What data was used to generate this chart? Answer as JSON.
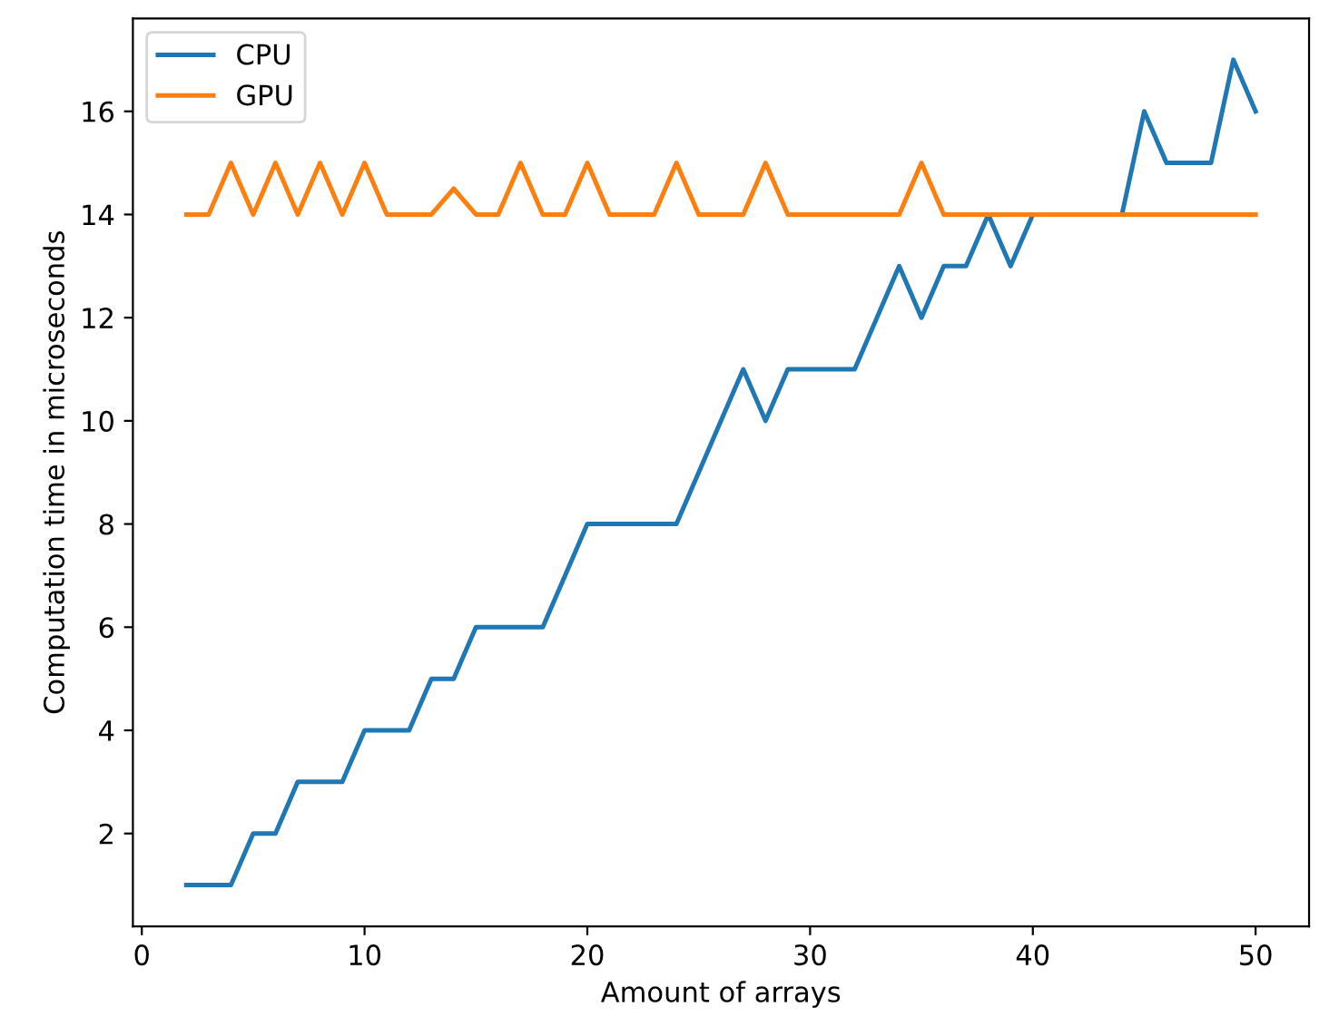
{
  "chart_data": {
    "type": "line",
    "xlabel": "Amount of arrays",
    "ylabel": "Computation time in microseconds",
    "x": [
      2,
      3,
      4,
      5,
      6,
      7,
      8,
      9,
      10,
      11,
      12,
      13,
      14,
      15,
      16,
      17,
      18,
      19,
      20,
      21,
      22,
      23,
      24,
      25,
      26,
      27,
      28,
      29,
      30,
      31,
      32,
      33,
      34,
      35,
      36,
      37,
      38,
      39,
      40,
      41,
      42,
      43,
      44,
      45,
      46,
      47,
      48,
      49,
      50
    ],
    "series": [
      {
        "name": "CPU",
        "color": "#1f77b4",
        "values": [
          1,
          1,
          1,
          2,
          2,
          3,
          3,
          3,
          4,
          4,
          4,
          5,
          5,
          6,
          6,
          6,
          6,
          7,
          8,
          8,
          8,
          8,
          8,
          9,
          10,
          11,
          10,
          11,
          11,
          11,
          11,
          12,
          13,
          12,
          13,
          13,
          14,
          13,
          14,
          14,
          14,
          14,
          14,
          16,
          15,
          15,
          15,
          17,
          16
        ]
      },
      {
        "name": "GPU",
        "color": "#ff7f0e",
        "values": [
          14,
          14,
          15,
          14,
          15,
          14,
          15,
          14,
          15,
          14,
          14,
          14,
          14.5,
          14,
          14,
          15,
          14,
          14,
          15,
          14,
          14,
          14,
          15,
          14,
          14,
          14,
          15,
          14,
          14,
          14,
          14,
          14,
          14,
          15,
          14,
          14,
          14,
          14,
          14,
          14,
          14,
          14,
          14,
          14,
          14,
          14,
          14,
          14,
          14
        ]
      }
    ],
    "xlim": [
      -0.4,
      52.4
    ],
    "ylim": [
      0.2,
      17.8
    ],
    "xticks": [
      0,
      10,
      20,
      30,
      40,
      50
    ],
    "yticks": [
      2,
      4,
      6,
      8,
      10,
      12,
      14,
      16
    ],
    "legend": "top left",
    "grid": false
  }
}
